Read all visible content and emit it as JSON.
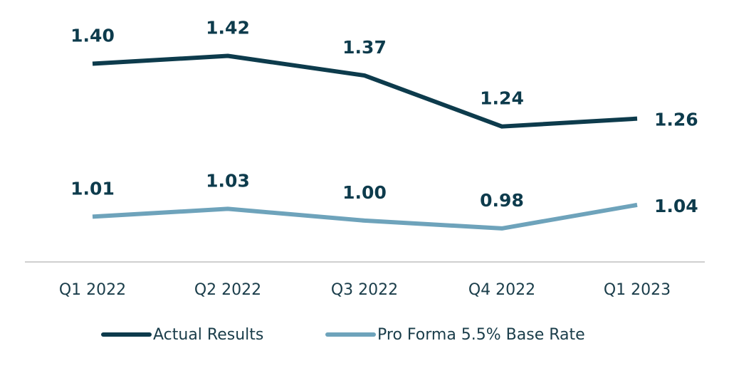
{
  "chart_data": {
    "type": "line",
    "categories": [
      "Q1 2022",
      "Q2 2022",
      "Q3 2022",
      "Q4 2022",
      "Q1 2023"
    ],
    "series": [
      {
        "name": "Actual Results",
        "color": "#0d3b4c",
        "values": [
          1.4,
          1.42,
          1.37,
          1.24,
          1.26
        ],
        "value_labels": [
          "1.40",
          "1.42",
          "1.37",
          "1.24",
          "1.26"
        ]
      },
      {
        "name": "Pro Forma 5.5% Base Rate",
        "color": "#6ea3bb",
        "values": [
          1.01,
          1.03,
          1.0,
          0.98,
          1.04
        ],
        "value_labels": [
          "1.01",
          "1.03",
          "1.00",
          "0.98",
          "1.04"
        ]
      }
    ],
    "ylim": [
      0.9,
      1.45
    ]
  }
}
